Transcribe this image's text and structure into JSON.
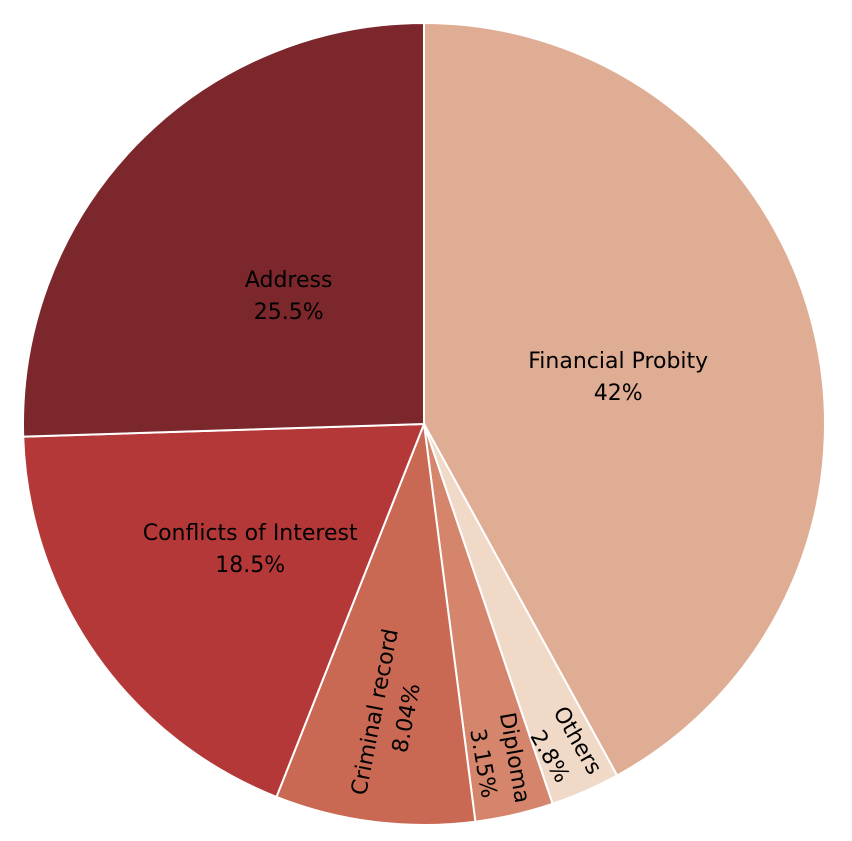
{
  "chart_data": {
    "type": "pie",
    "slices": [
      {
        "label": "Financial Probity",
        "value": 42,
        "value_label": "42%",
        "color": "#dfac94"
      },
      {
        "label": "Others",
        "value": 2.8,
        "value_label": "2.8%",
        "color": "#f1d9c8"
      },
      {
        "label": "Diploma",
        "value": 3.15,
        "value_label": "3.15%",
        "color": "#d5856b"
      },
      {
        "label": "Criminal record",
        "value": 8.04,
        "value_label": "8.04%",
        "color": "#c96953"
      },
      {
        "label": "Conflicts of Interest",
        "value": 18.5,
        "value_label": "18.5%",
        "color": "#b43837"
      },
      {
        "label": "Address",
        "value": 25.5,
        "value_label": "25.5%",
        "color": "#7b272b"
      }
    ],
    "start": "12 o'clock",
    "direction": "clockwise"
  }
}
